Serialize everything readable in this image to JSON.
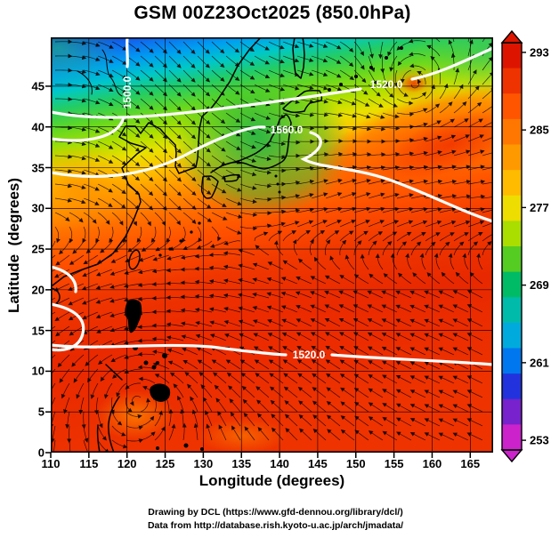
{
  "title": "GSM 00Z23Oct2025 (850.0hPa)",
  "footer": {
    "line1": "Drawing by DCL (https://www.gfd-dennou.org/library/dcl/)",
    "line2": "Data from http://database.rish.kyoto-u.ac.jp/arch/jmadata/"
  },
  "chart_data": {
    "type": "heatmap",
    "title": "GSM 00Z23Oct2025 (850.0hPa)",
    "xlabel": "Longitude (degrees)",
    "ylabel": "Latitude  (degrees)",
    "xlim": [
      110,
      168
    ],
    "ylim": [
      0,
      51
    ],
    "x_ticks": [
      110,
      115,
      120,
      125,
      130,
      135,
      140,
      145,
      150,
      155,
      160,
      165
    ],
    "y_ticks": [
      0,
      5,
      10,
      15,
      20,
      25,
      30,
      35,
      40,
      45
    ],
    "grid": true,
    "field_units": "K",
    "colorbar": {
      "vmin": 252,
      "vmax": 294,
      "ticks": [
        293,
        285,
        277,
        269,
        261,
        253
      ],
      "colors_top_to_bottom": [
        "#dd1500",
        "#ee3300",
        "#ff5500",
        "#ff7700",
        "#ff9900",
        "#ffbb00",
        "#eedd00",
        "#aadd00",
        "#55cc22",
        "#00bb66",
        "#00bbaa",
        "#00aadd",
        "#0077ee",
        "#2233dd",
        "#7722cc",
        "#cc22cc"
      ]
    },
    "sample_grid": {
      "description": "approximate 850 hPa temperature (K) read from color shading",
      "lons": [
        110,
        120,
        130,
        140,
        150,
        160,
        168
      ],
      "lats": [
        45,
        35,
        25,
        15,
        5
      ],
      "values_K": [
        [
          272,
          265,
          264,
          266,
          269,
          274,
          273
        ],
        [
          283,
          281,
          280,
          277,
          282,
          286,
          288
        ],
        [
          288,
          287,
          288,
          288,
          288,
          289,
          290
        ],
        [
          290,
          291,
          291,
          291,
          290,
          291,
          291
        ],
        [
          290,
          289,
          290,
          291,
          291,
          291,
          291
        ]
      ]
    },
    "contours": {
      "field": "geopotential height contours",
      "color": "#ffffff",
      "labels": [
        {
          "text": "1500.0"
        },
        {
          "text": "1520.0"
        },
        {
          "text": "1560.0"
        },
        {
          "text": "1520.0"
        }
      ]
    },
    "streamlines": {
      "color": "#000000",
      "features": [
        "westerly flow with wave pattern north of 30N",
        "easterly trade flow south of 20N",
        "cyclonic vortex near 121E 7N",
        "cyclonic vortex near 158E 45N"
      ]
    }
  }
}
